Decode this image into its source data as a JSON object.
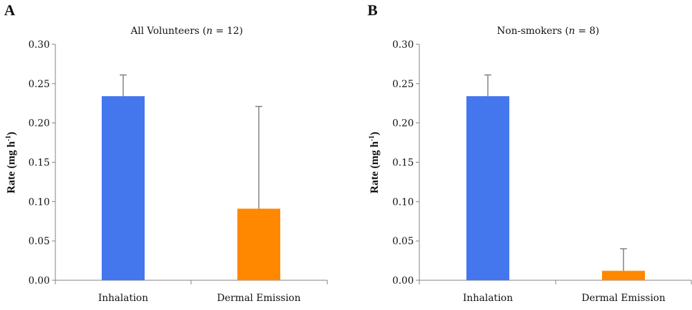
{
  "chart_data": [
    {
      "type": "bar",
      "panel_label": "A",
      "title": "All Volunteers (n = 12)",
      "title_parts": {
        "before": "All Volunteers (",
        "italic": "n",
        "after": " = 12)"
      },
      "ylabel": "Rate (mg h⁻¹)",
      "ylabel_parts": {
        "main": "Rate (mg h",
        "sup": "-1",
        "close": ")"
      },
      "ylim": [
        0,
        0.3
      ],
      "yticks": [
        "0.00",
        "0.05",
        "0.10",
        "0.15",
        "0.20",
        "0.25",
        "0.30"
      ],
      "ytick_values": [
        0,
        0.05,
        0.1,
        0.15,
        0.2,
        0.25,
        0.3
      ],
      "categories": [
        "Inhalation",
        "Dermal Emission"
      ],
      "values": [
        0.234,
        0.091
      ],
      "error_upper": [
        0.027,
        0.13
      ],
      "colors": [
        "#4477ee",
        "#ff8800"
      ],
      "grid": false,
      "legend": "none"
    },
    {
      "type": "bar",
      "panel_label": "B",
      "title": "Non-smokers (n = 8)",
      "title_parts": {
        "before": "Non-smokers (",
        "italic": "n",
        "after": " = 8)"
      },
      "ylabel": "Rate (mg h⁻¹)",
      "ylabel_parts": {
        "main": "Rate (mg h",
        "sup": "-1",
        "close": ")"
      },
      "ylim": [
        0,
        0.3
      ],
      "yticks": [
        "0.00",
        "0.05",
        "0.10",
        "0.15",
        "0.20",
        "0.25",
        "0.30"
      ],
      "ytick_values": [
        0,
        0.05,
        0.1,
        0.15,
        0.2,
        0.25,
        0.3
      ],
      "categories": [
        "Inhalation",
        "Dermal Emission"
      ],
      "values": [
        0.234,
        0.012
      ],
      "error_upper": [
        0.027,
        0.028
      ],
      "colors": [
        "#4477ee",
        "#ff8800"
      ],
      "grid": false,
      "legend": "none"
    }
  ]
}
